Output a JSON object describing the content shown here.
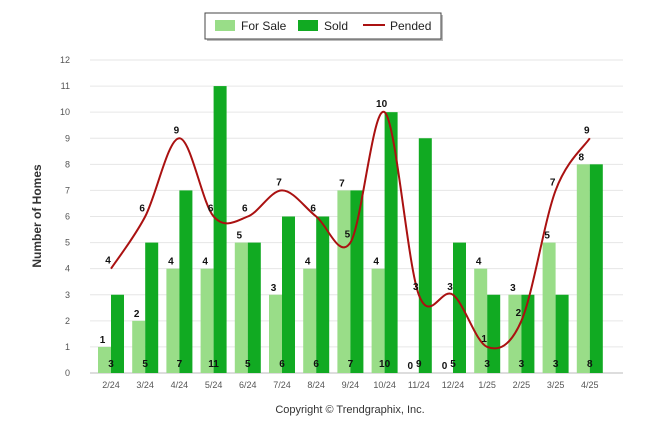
{
  "chart_data": {
    "type": "bar",
    "categories": [
      "2/24",
      "3/24",
      "4/24",
      "5/24",
      "6/24",
      "7/24",
      "8/24",
      "9/24",
      "10/24",
      "11/24",
      "12/24",
      "1/25",
      "2/25",
      "3/25",
      "4/25"
    ],
    "series": [
      {
        "name": "For Sale",
        "type": "bar",
        "color": "#99dd88",
        "values": [
          1,
          2,
          4,
          4,
          5,
          3,
          4,
          7,
          4,
          0,
          0,
          4,
          3,
          5,
          8
        ]
      },
      {
        "name": "Sold",
        "type": "bar",
        "color": "#11aa22",
        "values": [
          3,
          5,
          7,
          11,
          5,
          6,
          6,
          7,
          10,
          9,
          5,
          3,
          3,
          3,
          8
        ]
      },
      {
        "name": "Pended",
        "type": "line",
        "color": "#aa1111",
        "values": [
          4,
          6,
          9,
          6,
          6,
          7,
          6,
          5,
          10,
          3,
          3,
          1,
          2,
          7,
          9
        ]
      }
    ],
    "xlabel": "",
    "ylabel": "Number of Homes",
    "ylim": [
      0,
      12
    ],
    "yticks": [
      0,
      1,
      2,
      3,
      4,
      5,
      6,
      7,
      8,
      9,
      10,
      11,
      12
    ],
    "grid": true,
    "legend_position": "top-center"
  },
  "footer": {
    "copyright": "Copyright © Trendgraphix, Inc."
  }
}
